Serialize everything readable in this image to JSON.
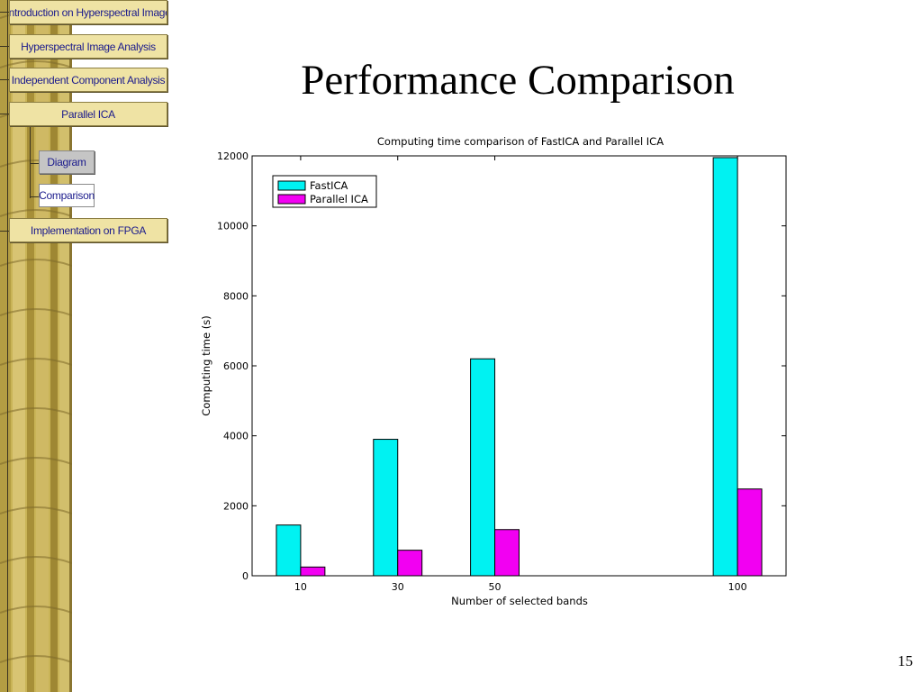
{
  "navigation": {
    "items": [
      {
        "label": "Introduction on Hyperspectral Image"
      },
      {
        "label": "Hyperspectral Image Analysis"
      },
      {
        "label": "Independent Component Analysis"
      },
      {
        "label": "Parallel ICA"
      },
      {
        "label": "Implementation on FPGA"
      }
    ],
    "subitems": [
      {
        "label": "Diagram"
      },
      {
        "label": "Comparison"
      }
    ]
  },
  "slide": {
    "title": "Performance Comparison",
    "page_number": "15"
  },
  "colors": {
    "fastica": "#00f2f2",
    "parallel": "#f200f2",
    "nav_bg": "#efe3a4",
    "bamboo": "#c9b457"
  },
  "chart_data": {
    "type": "bar",
    "title": "Computing time comparison of FastICA and Parallel ICA",
    "xlabel": "Number of selected bands",
    "ylabel": "Computing time (s)",
    "x": [
      10,
      30,
      50,
      100
    ],
    "xlim": [
      0,
      110
    ],
    "ylim": [
      0,
      12000
    ],
    "yticks": [
      0,
      2000,
      4000,
      6000,
      8000,
      10000,
      12000
    ],
    "series": [
      {
        "name": "FastICA",
        "values": [
          1450,
          3900,
          6200,
          11950
        ],
        "color": "#00f2f2"
      },
      {
        "name": "Parallel ICA",
        "values": [
          250,
          730,
          1320,
          2480
        ],
        "color": "#f200f2"
      }
    ],
    "legend": "top-left",
    "grid": false
  }
}
